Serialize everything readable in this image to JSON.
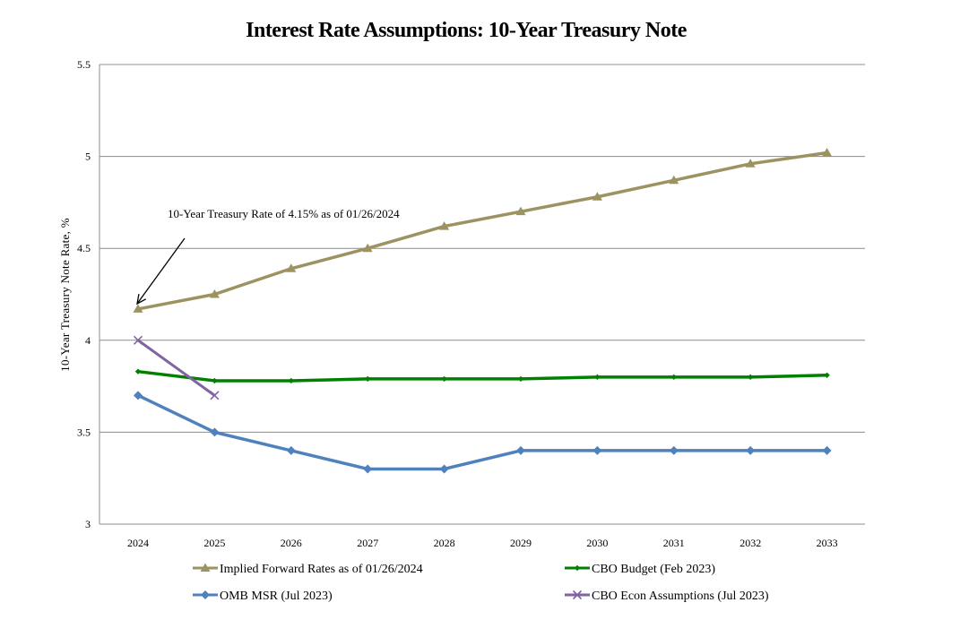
{
  "chart_data": {
    "type": "line",
    "title": "Interest Rate Assumptions: 10-Year Treasury Note",
    "xlabel": "",
    "ylabel": "10-Year Treasury  Note Rate, %",
    "ylim": [
      3,
      5.5
    ],
    "yticks": [
      "3",
      "3.5",
      "4",
      "4.5",
      "5",
      "5.5"
    ],
    "categories": [
      "2024",
      "2025",
      "2026",
      "2027",
      "2028",
      "2029",
      "2030",
      "2031",
      "2032",
      "2033"
    ],
    "grid": "horizontal",
    "legend_position": "bottom",
    "annotation": {
      "text": "10-Year Treasury  Rate of 4.15% as of 01/26/2024",
      "points_to_category": "2024",
      "points_to_value": 4.17
    },
    "series": [
      {
        "name": "Implied Forward Rates as of 01/26/2024",
        "color": "#9c9361",
        "marker": "triangle",
        "values": [
          4.17,
          4.25,
          4.39,
          4.5,
          4.62,
          4.7,
          4.78,
          4.87,
          4.96,
          5.02
        ]
      },
      {
        "name": "CBO Budget (Feb 2023)",
        "color": "#008000",
        "marker": "diamond-small",
        "values": [
          3.83,
          3.78,
          3.78,
          3.79,
          3.79,
          3.79,
          3.8,
          3.8,
          3.8,
          3.81
        ]
      },
      {
        "name": "OMB MSR (Jul 2023)",
        "color": "#4f81bd",
        "marker": "diamond",
        "values": [
          3.7,
          3.5,
          3.4,
          3.3,
          3.3,
          3.4,
          3.4,
          3.4,
          3.4,
          3.4
        ]
      },
      {
        "name": "CBO Econ Assumptions (Jul 2023)",
        "color": "#8064a2",
        "marker": "x",
        "values": [
          4.0,
          3.7,
          null,
          null,
          null,
          null,
          null,
          null,
          null,
          null
        ]
      }
    ]
  }
}
